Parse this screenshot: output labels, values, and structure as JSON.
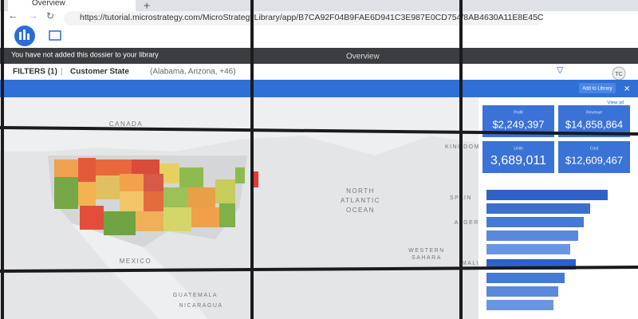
{
  "browser": {
    "tab_title": "Overview",
    "url": "https://tutorial.microstrategy.com/MicroStrategyLibrary/app/B7CA92F04B9FAE6D941C3E987E0CD754/8AB4630A11E8E45C"
  },
  "banner": {
    "message": "You have not added this dossier to your library",
    "title": "Overview",
    "button": "Add to Library",
    "user": "TC"
  },
  "filters": {
    "label": "FILTERS (1)",
    "name": "Customer State",
    "detail": "(Alabama, Arizona, +46)"
  },
  "map": {
    "labels": [
      "CANADA",
      "MEXICO",
      "NORTH",
      "ATLANTIC",
      "OCEAN",
      "GUATEMALA",
      "NICARAGUA",
      "KINGDOM",
      "SPAIN",
      "ALGERIA",
      "WESTERN",
      "SAHARA",
      "MALI"
    ]
  },
  "panel": {
    "view_all": "View all",
    "kpis": [
      {
        "label": "Profit",
        "value": "$2,249,397"
      },
      {
        "label": "Revenue",
        "value": "$14,858,864"
      },
      {
        "label": "Units",
        "value": "3,689,011"
      },
      {
        "label": "Cost",
        "value": "$12,609,467"
      }
    ]
  }
}
